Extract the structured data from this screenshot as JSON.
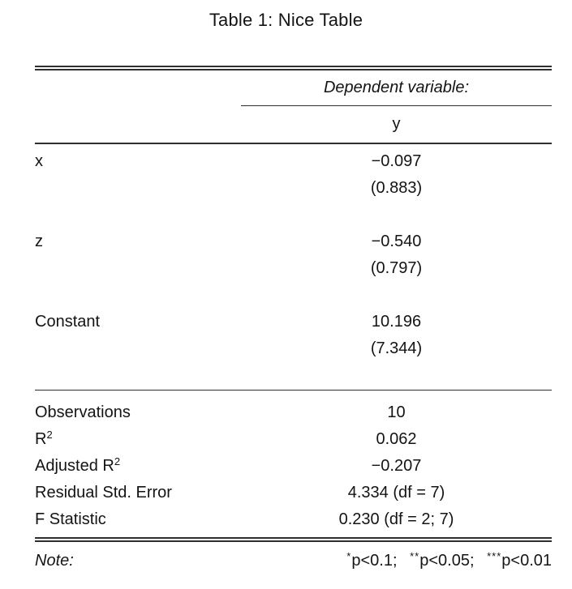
{
  "title": "Table 1: Nice Table",
  "colors": {
    "background": "#ffffff",
    "text": "#141414",
    "rule": "#2e2e2e"
  },
  "header": {
    "dependent_variable_label": "Dependent variable:",
    "dependent_variable_name": "y"
  },
  "coefficients": [
    {
      "label": "x",
      "estimate": "−0.097",
      "std_error": "(0.883)"
    },
    {
      "label": "z",
      "estimate": "−0.540",
      "std_error": "(0.797)"
    },
    {
      "label": "Constant",
      "estimate": "10.196",
      "std_error": "(7.344)"
    }
  ],
  "statistics": [
    {
      "label": "Observations",
      "label_sup": "",
      "value": "10"
    },
    {
      "label": "R",
      "label_sup": "2",
      "value": "0.062"
    },
    {
      "label": "Adjusted R",
      "label_sup": "2",
      "value": "−0.207"
    },
    {
      "label": "Residual Std. Error",
      "label_sup": "",
      "value": "4.334 (df = 7)"
    },
    {
      "label": "F Statistic",
      "label_sup": "",
      "value": "0.230 (df = 2; 7)"
    }
  ],
  "note": {
    "label": "Note:",
    "items": [
      {
        "stars": "*",
        "text": "p<0.1;"
      },
      {
        "stars": "**",
        "text": "p<0.05;"
      },
      {
        "stars": "***",
        "text": "p<0.01"
      }
    ]
  }
}
